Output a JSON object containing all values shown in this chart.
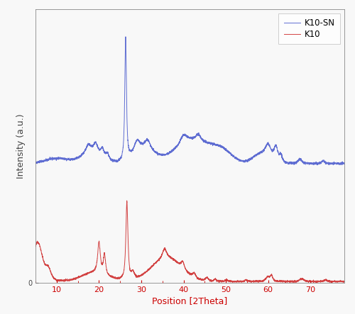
{
  "xlabel": "Position [2Theta]",
  "ylabel": "Intensity (a.u.)",
  "xlabel_color": "#cc0000",
  "ylabel_color": "#444444",
  "xtick_color": "#cc0000",
  "ytick_color": "#444444",
  "xlim": [
    5,
    78
  ],
  "ylim": [
    0,
    1.0
  ],
  "legend_labels": [
    "K10-SN",
    "K10"
  ],
  "blue_color": "#4455cc",
  "red_color": "#cc2222",
  "tick_fontsize": 8,
  "label_fontsize": 9,
  "background_color": "#f8f8f8",
  "blue_baseline": 0.42,
  "red_baseline": 0.0,
  "blue_scale": 0.48,
  "red_scale": 0.3
}
